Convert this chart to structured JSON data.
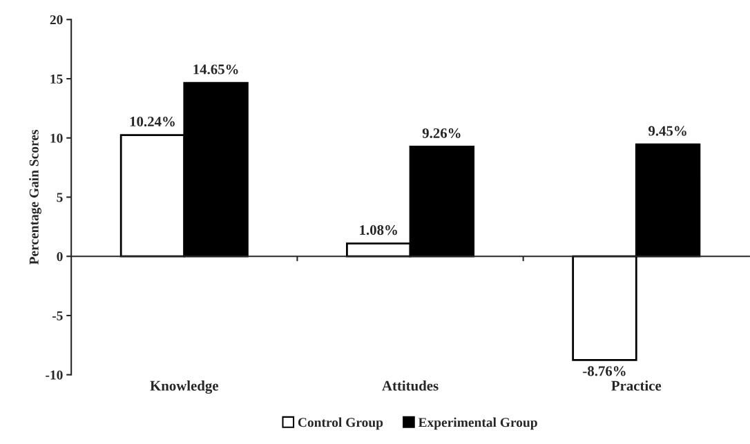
{
  "chart_data": {
    "type": "bar",
    "ylabel": "Percentage Gain Scores",
    "categories": [
      "Knowledge",
      "Attitudes",
      "Practice"
    ],
    "series": [
      {
        "name": "Control Group",
        "color": "#ffffff",
        "values": [
          10.24,
          1.08,
          -8.76
        ],
        "value_labels": [
          "10.24%",
          "1.08%",
          "-8.76%"
        ]
      },
      {
        "name": "Experimental Group",
        "color": "#000000",
        "values": [
          14.65,
          9.26,
          9.45
        ],
        "value_labels": [
          "14.65%",
          "9.26%",
          "9.45%"
        ]
      }
    ],
    "ylim": [
      -10,
      20
    ],
    "yticks": [
      -10,
      -5,
      0,
      5,
      10,
      15,
      20
    ],
    "legend": "bottom"
  }
}
